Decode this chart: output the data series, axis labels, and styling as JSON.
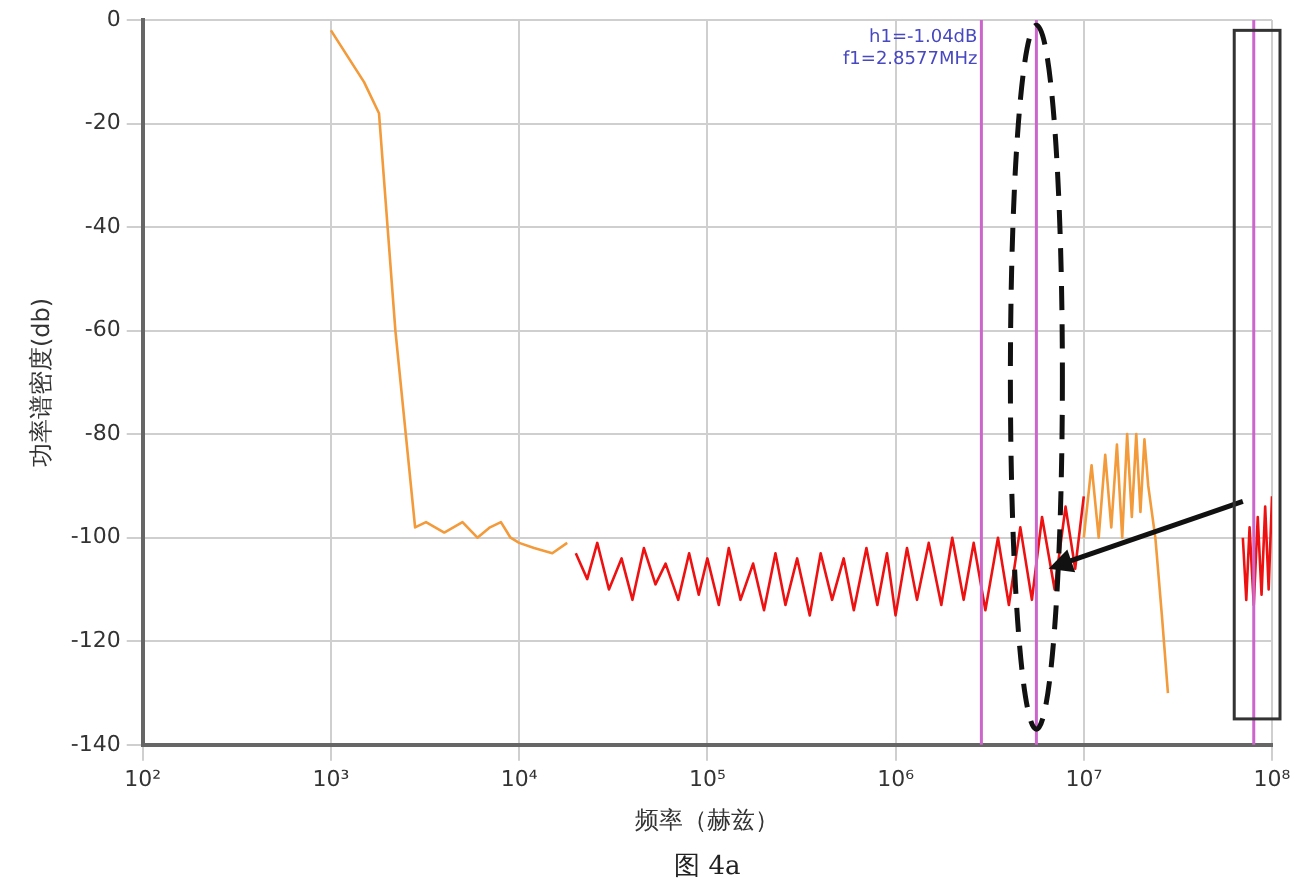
{
  "chart_data": {
    "type": "line",
    "xlabel": "频率（赫兹）",
    "ylabel": "功率谱密度(db)",
    "log": "x",
    "xlim": [
      100,
      100000000
    ],
    "xticks": [
      {
        "value": 100,
        "label": "10²"
      },
      {
        "value": 1000,
        "label": "10³"
      },
      {
        "value": 10000,
        "label": "10⁴"
      },
      {
        "value": 100000,
        "label": "10⁵"
      },
      {
        "value": 1000000,
        "label": "10⁶"
      },
      {
        "value": 10000000,
        "label": "10⁷"
      },
      {
        "value": 100000000,
        "label": "10⁸"
      }
    ],
    "ylim": [
      -140,
      0
    ],
    "yticks": [
      0,
      -20,
      -40,
      -60,
      -80,
      -100,
      -120,
      -140
    ],
    "grid": true,
    "legend": false,
    "marker": "none",
    "line_style": "solid",
    "series": [
      {
        "color": "#f39a3a",
        "x": [
          1000,
          1500,
          1800,
          2200,
          2800,
          3200,
          4000,
          5000,
          6000,
          7000,
          8000,
          9000,
          10000,
          12000,
          15000,
          18000,
          100000,
          10000000,
          11000000,
          12000000,
          13000000,
          14000000,
          15000000,
          16000000,
          17000000,
          18000000,
          19000000,
          20000000,
          21000000,
          22000000,
          24000000,
          26000000,
          28000000
        ],
        "values": [
          -2,
          -12,
          -18,
          -60,
          -98,
          -97,
          -99,
          -97,
          -100,
          -98,
          -97,
          -100,
          -101,
          -102,
          -103,
          -101,
          null,
          -100,
          -86,
          -100,
          -84,
          -98,
          -82,
          -100,
          -80,
          -96,
          -80,
          -95,
          -81,
          -90,
          -100,
          -115,
          -130
        ]
      },
      {
        "color": "#ee1111",
        "x": [
          20000,
          23000,
          26000,
          30000,
          35000,
          40000,
          46000,
          53000,
          60000,
          70000,
          80000,
          90000,
          100000,
          115000,
          130000,
          150000,
          175000,
          200000,
          230000,
          260000,
          300000,
          350000,
          400000,
          460000,
          530000,
          600000,
          700000,
          800000,
          900000,
          1000000,
          1150000,
          1300000,
          1500000,
          1750000,
          2000000,
          2300000,
          2600000,
          3000000,
          3500000,
          4000000,
          4600000,
          5300000,
          6000000,
          7000000,
          8000000,
          9000000,
          10000000,
          30000000,
          70000000,
          73000000,
          76000000,
          80000000,
          84000000,
          88000000,
          92000000,
          96000000,
          100000000
        ],
        "values": [
          -103,
          -108,
          -101,
          -110,
          -104,
          -112,
          -102,
          -109,
          -105,
          -112,
          -103,
          -111,
          -104,
          -113,
          -102,
          -112,
          -105,
          -114,
          -103,
          -113,
          -104,
          -115,
          -103,
          -112,
          -104,
          -114,
          -102,
          -113,
          -103,
          -115,
          -102,
          -112,
          -101,
          -113,
          -100,
          -112,
          -101,
          -114,
          -100,
          -113,
          -98,
          -112,
          -96,
          -110,
          -94,
          -106,
          -92,
          null,
          -100,
          -112,
          -98,
          -113,
          -96,
          -111,
          -94,
          -110,
          -92
        ]
      }
    ],
    "ref_lines": [
      {
        "axis": "x",
        "value": 2857700,
        "color": "#cc66cc"
      },
      {
        "axis": "x",
        "value": 5600000,
        "color": "#cc66cc"
      },
      {
        "axis": "x",
        "value": 80000000,
        "color": "#cc66cc"
      }
    ],
    "annotations": [
      "h1=-1.04dB",
      "f1=2.8577MHz",
      "图 4a"
    ]
  }
}
